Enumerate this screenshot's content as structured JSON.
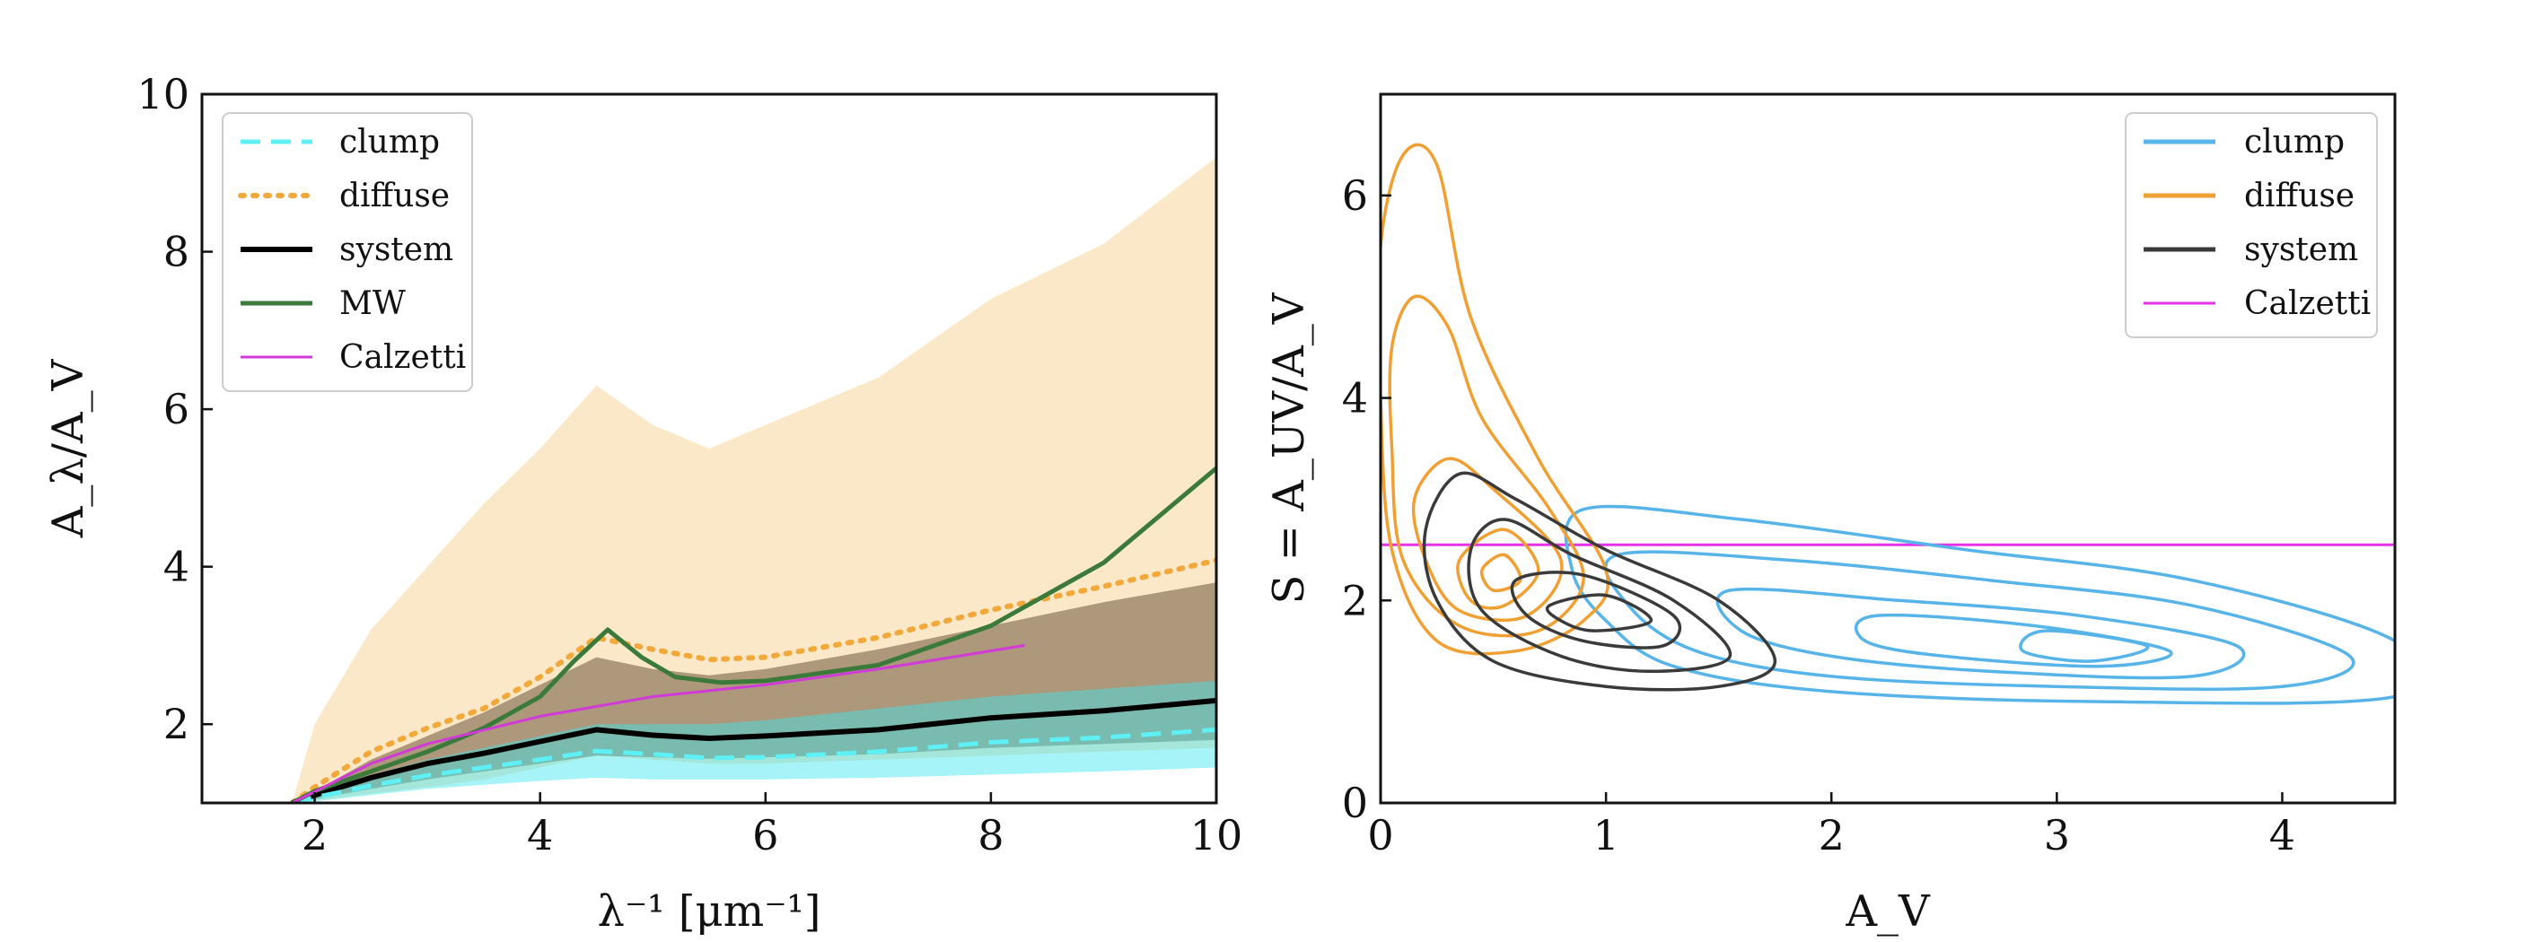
{
  "chart_data": [
    {
      "type": "line",
      "xlabel": "λ⁻¹ [μm⁻¹]",
      "ylabel": "A_λ/A_V",
      "xlim": [
        1,
        10
      ],
      "ylim": [
        1,
        10
      ],
      "xticks": [
        2,
        4,
        6,
        8,
        10
      ],
      "yticks": [
        2,
        4,
        6,
        8,
        10
      ],
      "legend_position": "top-left",
      "legend": [
        "clump",
        "diffuse",
        "system",
        "MW",
        "Calzetti"
      ],
      "colors": {
        "clump": "#5ef0f5",
        "diffuse": "#f2a93b",
        "system": "#000000",
        "MW": "#3b7a3b",
        "Calzetti": "#d13ad8"
      },
      "series": [
        {
          "name": "clump",
          "style": "dashed",
          "x": [
            1.8,
            2.0,
            2.5,
            3.0,
            3.5,
            4.0,
            4.5,
            5.0,
            5.5,
            6.0,
            7.0,
            8.0,
            9.0,
            10.0
          ],
          "y": [
            1.0,
            1.07,
            1.22,
            1.35,
            1.45,
            1.55,
            1.66,
            1.62,
            1.57,
            1.58,
            1.65,
            1.77,
            1.83,
            1.93
          ],
          "band_lower": [
            1.0,
            1.02,
            1.1,
            1.18,
            1.23,
            1.28,
            1.32,
            1.3,
            1.3,
            1.3,
            1.32,
            1.36,
            1.4,
            1.45
          ],
          "band_upper": [
            1.0,
            1.1,
            1.35,
            1.55,
            1.7,
            1.85,
            2.0,
            2.0,
            2.0,
            2.05,
            2.2,
            2.35,
            2.45,
            2.55
          ]
        },
        {
          "name": "diffuse",
          "style": "dotted",
          "x": [
            1.8,
            2.0,
            2.5,
            3.0,
            3.5,
            4.0,
            4.5,
            5.0,
            5.5,
            6.0,
            7.0,
            8.0,
            9.0,
            10.0
          ],
          "y": [
            1.0,
            1.2,
            1.65,
            1.95,
            2.2,
            2.6,
            3.1,
            2.95,
            2.82,
            2.85,
            3.1,
            3.45,
            3.75,
            4.08
          ],
          "band_lower": [
            1.0,
            1.03,
            1.12,
            1.2,
            1.3,
            1.45,
            1.6,
            1.55,
            1.5,
            1.5,
            1.55,
            1.6,
            1.65,
            1.7
          ],
          "band_upper": [
            1.0,
            2.0,
            3.2,
            4.0,
            4.8,
            5.5,
            6.3,
            5.8,
            5.5,
            5.8,
            6.4,
            7.4,
            8.1,
            9.2
          ]
        },
        {
          "name": "system",
          "style": "solid",
          "x": [
            1.8,
            2.0,
            2.5,
            3.0,
            3.5,
            4.0,
            4.5,
            5.0,
            5.5,
            6.0,
            7.0,
            8.0,
            9.0,
            10.0
          ],
          "y": [
            1.0,
            1.1,
            1.32,
            1.5,
            1.63,
            1.78,
            1.93,
            1.86,
            1.82,
            1.85,
            1.93,
            2.08,
            2.17,
            2.3
          ],
          "band_lower": [
            1.0,
            1.05,
            1.18,
            1.3,
            1.4,
            1.5,
            1.6,
            1.58,
            1.56,
            1.58,
            1.62,
            1.7,
            1.75,
            1.8
          ],
          "band_upper": [
            1.0,
            1.15,
            1.55,
            1.85,
            2.15,
            2.5,
            2.85,
            2.7,
            2.62,
            2.7,
            2.95,
            3.25,
            3.55,
            3.8
          ]
        },
        {
          "name": "MW",
          "style": "solid",
          "x": [
            1.8,
            2.0,
            2.5,
            3.0,
            3.5,
            4.0,
            4.3,
            4.6,
            4.9,
            5.2,
            5.6,
            6.0,
            7.0,
            8.0,
            9.0,
            10.0
          ],
          "y": [
            1.0,
            1.15,
            1.4,
            1.65,
            1.95,
            2.35,
            2.8,
            3.2,
            2.85,
            2.6,
            2.53,
            2.55,
            2.75,
            3.25,
            4.05,
            5.25
          ]
        },
        {
          "name": "Calzetti",
          "style": "solid",
          "x": [
            1.8,
            2.5,
            3.0,
            4.0,
            5.0,
            6.0,
            7.0,
            8.3
          ],
          "y": [
            1.0,
            1.5,
            1.75,
            2.1,
            2.35,
            2.5,
            2.7,
            3.0
          ]
        }
      ]
    },
    {
      "type": "contour",
      "xlabel": "A_V",
      "ylabel": "S = A_UV/A_V",
      "xlim": [
        0,
        4.5
      ],
      "ylim": [
        0,
        7
      ],
      "xticks": [
        0,
        1,
        2,
        3,
        4
      ],
      "yticks": [
        0,
        2,
        4,
        6
      ],
      "legend_position": "top-right",
      "legend": [
        "clump",
        "diffuse",
        "system",
        "Calzetti"
      ],
      "colors": {
        "clump": "#56b4e9",
        "diffuse": "#f0a033",
        "system": "#3a3a3a",
        "Calzetti": "#e632e6"
      },
      "calzetti_S": 2.55,
      "contours": [
        {
          "name": "clump",
          "center": [
            2.8,
            1.6
          ],
          "levels": [
            [
              [
                0.9,
                2.9
              ],
              [
                1.6,
                2.8
              ],
              [
                2.6,
                2.5
              ],
              [
                3.6,
                2.2
              ],
              [
                4.5,
                1.6
              ],
              [
                4.5,
                1.05
              ],
              [
                3.2,
                1.0
              ],
              [
                2.0,
                1.1
              ],
              [
                1.3,
                1.35
              ],
              [
                1.0,
                1.8
              ],
              [
                0.85,
                2.3
              ]
            ],
            [
              [
                1.05,
                2.45
              ],
              [
                1.8,
                2.4
              ],
              [
                2.7,
                2.2
              ],
              [
                3.6,
                1.95
              ],
              [
                4.3,
                1.45
              ],
              [
                4.0,
                1.15
              ],
              [
                3.0,
                1.15
              ],
              [
                2.0,
                1.25
              ],
              [
                1.4,
                1.5
              ],
              [
                1.1,
                1.95
              ]
            ],
            [
              [
                1.55,
                2.1
              ],
              [
                2.3,
                2.0
              ],
              [
                3.1,
                1.85
              ],
              [
                3.8,
                1.55
              ],
              [
                3.6,
                1.25
              ],
              [
                2.7,
                1.3
              ],
              [
                2.0,
                1.45
              ],
              [
                1.6,
                1.7
              ]
            ],
            [
              [
                2.2,
                1.85
              ],
              [
                2.9,
                1.75
              ],
              [
                3.5,
                1.5
              ],
              [
                3.2,
                1.35
              ],
              [
                2.5,
                1.45
              ],
              [
                2.15,
                1.6
              ]
            ],
            [
              [
                2.95,
                1.7
              ],
              [
                3.4,
                1.55
              ],
              [
                3.15,
                1.4
              ],
              [
                2.85,
                1.5
              ]
            ]
          ]
        },
        {
          "name": "diffuse",
          "center": [
            0.3,
            3.5
          ],
          "levels": [
            [
              [
                0.0,
                5.5
              ],
              [
                0.1,
                6.4
              ],
              [
                0.25,
                6.3
              ],
              [
                0.4,
                4.8
              ],
              [
                0.7,
                3.4
              ],
              [
                1.0,
                2.3
              ],
              [
                0.9,
                1.8
              ],
              [
                0.6,
                1.5
              ],
              [
                0.25,
                1.6
              ],
              [
                0.05,
                2.5
              ],
              [
                0.0,
                4.0
              ]
            ],
            [
              [
                0.05,
                4.5
              ],
              [
                0.15,
                5.0
              ],
              [
                0.3,
                4.7
              ],
              [
                0.45,
                3.8
              ],
              [
                0.75,
                2.9
              ],
              [
                0.9,
                2.2
              ],
              [
                0.7,
                1.7
              ],
              [
                0.35,
                1.75
              ],
              [
                0.1,
                2.4
              ],
              [
                0.05,
                3.5
              ]
            ],
            [
              [
                0.15,
                3.0
              ],
              [
                0.3,
                3.4
              ],
              [
                0.5,
                3.1
              ],
              [
                0.8,
                2.4
              ],
              [
                0.65,
                1.85
              ],
              [
                0.35,
                1.9
              ],
              [
                0.2,
                2.4
              ]
            ],
            [
              [
                0.35,
                2.4
              ],
              [
                0.55,
                2.7
              ],
              [
                0.7,
                2.3
              ],
              [
                0.55,
                1.95
              ],
              [
                0.4,
                2.0
              ]
            ],
            [
              [
                0.45,
                2.3
              ],
              [
                0.55,
                2.45
              ],
              [
                0.62,
                2.2
              ],
              [
                0.5,
                2.1
              ]
            ]
          ]
        },
        {
          "name": "system",
          "center": [
            0.9,
            1.9
          ],
          "levels": [
            [
              [
                0.2,
                2.7
              ],
              [
                0.35,
                3.25
              ],
              [
                0.6,
                3.0
              ],
              [
                1.0,
                2.5
              ],
              [
                1.5,
                2.0
              ],
              [
                1.75,
                1.4
              ],
              [
                1.5,
                1.15
              ],
              [
                1.0,
                1.15
              ],
              [
                0.5,
                1.4
              ],
              [
                0.25,
                2.0
              ]
            ],
            [
              [
                0.4,
                2.5
              ],
              [
                0.55,
                2.8
              ],
              [
                0.85,
                2.45
              ],
              [
                1.3,
                2.0
              ],
              [
                1.55,
                1.45
              ],
              [
                1.2,
                1.3
              ],
              [
                0.8,
                1.45
              ],
              [
                0.45,
                1.9
              ]
            ],
            [
              [
                0.6,
                2.2
              ],
              [
                0.9,
                2.25
              ],
              [
                1.3,
                1.85
              ],
              [
                1.25,
                1.55
              ],
              [
                0.9,
                1.6
              ],
              [
                0.65,
                1.85
              ]
            ],
            [
              [
                0.75,
                1.95
              ],
              [
                1.0,
                2.05
              ],
              [
                1.2,
                1.8
              ],
              [
                0.95,
                1.7
              ],
              [
                0.8,
                1.8
              ]
            ]
          ]
        }
      ]
    }
  ]
}
